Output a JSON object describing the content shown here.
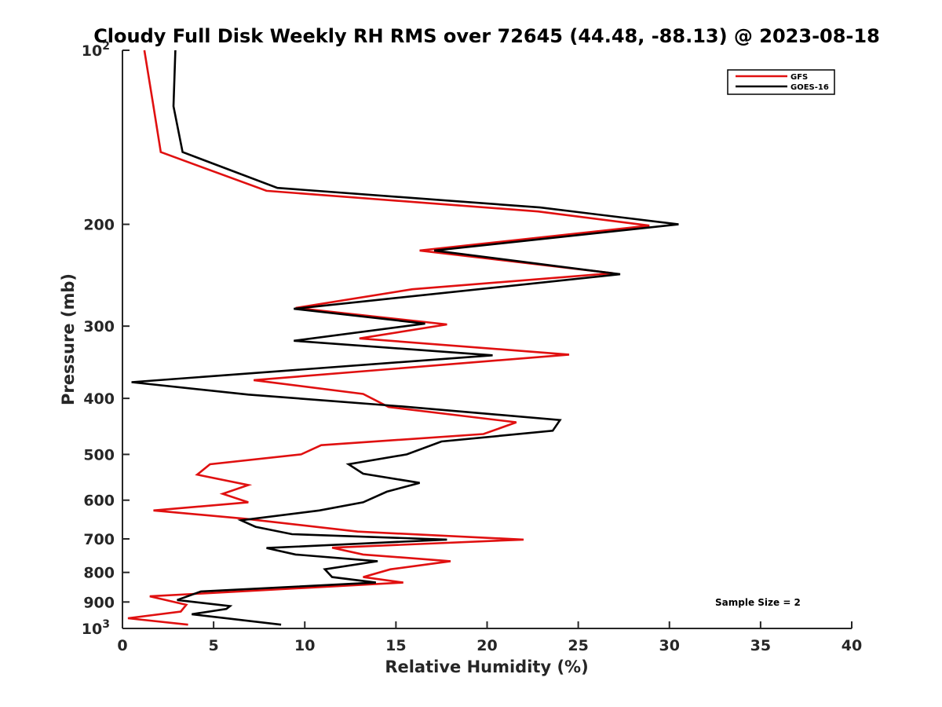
{
  "chart_data": {
    "type": "line",
    "title": "Cloudy Full Disk Weekly RH RMS over 72645 (44.48, -88.13) @ 2023-08-18",
    "xlabel": "Relative Humidity (%)",
    "ylabel": "Pressure (mb)",
    "xlim": [
      0,
      40
    ],
    "ylim": [
      100,
      1000
    ],
    "y_scale": "log",
    "y_reversed": true,
    "xticks": [
      0,
      5,
      10,
      15,
      20,
      25,
      30,
      35,
      40
    ],
    "yticks": [
      {
        "value": 100,
        "label": "10",
        "sup": "2"
      },
      {
        "value": 200,
        "label": "200"
      },
      {
        "value": 300,
        "label": "300"
      },
      {
        "value": 400,
        "label": "400"
      },
      {
        "value": 500,
        "label": "500"
      },
      {
        "value": 600,
        "label": "600"
      },
      {
        "value": 700,
        "label": "700"
      },
      {
        "value": 800,
        "label": "800"
      },
      {
        "value": 900,
        "label": "900"
      },
      {
        "value": 1000,
        "label": "10",
        "sup": "3"
      }
    ],
    "grid": false,
    "legend_position": "top-right",
    "series": [
      {
        "name": "GFS",
        "color": "#e01010",
        "points": [
          [
            1.2,
            100
          ],
          [
            1.7,
            125
          ],
          [
            2.1,
            150
          ],
          [
            7.9,
            175
          ],
          [
            22.8,
            190
          ],
          [
            28.9,
            201
          ],
          [
            16.3,
            222
          ],
          [
            26.9,
            243
          ],
          [
            15.9,
            259
          ],
          [
            9.5,
            279
          ],
          [
            17.8,
            298
          ],
          [
            13.0,
            315
          ],
          [
            24.5,
            336
          ],
          [
            7.2,
            372
          ],
          [
            13.2,
            393
          ],
          [
            14.6,
            414
          ],
          [
            21.6,
            440
          ],
          [
            19.8,
            461
          ],
          [
            10.9,
            482
          ],
          [
            9.8,
            500
          ],
          [
            4.8,
            520
          ],
          [
            4.1,
            542
          ],
          [
            6.9,
            565
          ],
          [
            5.5,
            585
          ],
          [
            6.9,
            605
          ],
          [
            1.7,
            625
          ],
          [
            6.7,
            646
          ],
          [
            12.9,
            680
          ],
          [
            22.0,
            702
          ],
          [
            11.5,
            725
          ],
          [
            13.2,
            745
          ],
          [
            18.0,
            765
          ],
          [
            14.7,
            790
          ],
          [
            13.2,
            815
          ],
          [
            15.4,
            833
          ],
          [
            1.5,
            880
          ],
          [
            3.5,
            910
          ],
          [
            3.2,
            935
          ],
          [
            0.3,
            960
          ],
          [
            3.6,
            985
          ]
        ]
      },
      {
        "name": "GOES-16",
        "color": "#000000",
        "points": [
          [
            2.9,
            100
          ],
          [
            2.8,
            125
          ],
          [
            3.3,
            150
          ],
          [
            8.5,
            173
          ],
          [
            22.9,
            187
          ],
          [
            30.5,
            200
          ],
          [
            17.1,
            222
          ],
          [
            27.3,
            244
          ],
          [
            9.4,
            280
          ],
          [
            16.6,
            297
          ],
          [
            9.4,
            318
          ],
          [
            20.3,
            337
          ],
          [
            0.5,
            375
          ],
          [
            6.9,
            394
          ],
          [
            15.3,
            413
          ],
          [
            24.0,
            436
          ],
          [
            23.6,
            455
          ],
          [
            17.5,
            475
          ],
          [
            15.6,
            500
          ],
          [
            12.4,
            520
          ],
          [
            13.2,
            540
          ],
          [
            16.3,
            560
          ],
          [
            14.5,
            580
          ],
          [
            13.2,
            605
          ],
          [
            10.8,
            625
          ],
          [
            6.5,
            650
          ],
          [
            7.3,
            667
          ],
          [
            9.3,
            687
          ],
          [
            17.8,
            702
          ],
          [
            7.9,
            726
          ],
          [
            9.5,
            745
          ],
          [
            14.0,
            765
          ],
          [
            11.1,
            790
          ],
          [
            11.5,
            815
          ],
          [
            13.9,
            833
          ],
          [
            4.3,
            863
          ],
          [
            3.0,
            893
          ],
          [
            5.9,
            915
          ],
          [
            5.7,
            925
          ],
          [
            3.8,
            945
          ],
          [
            8.7,
            985
          ]
        ]
      }
    ],
    "annotation": "Sample Size = 2"
  }
}
